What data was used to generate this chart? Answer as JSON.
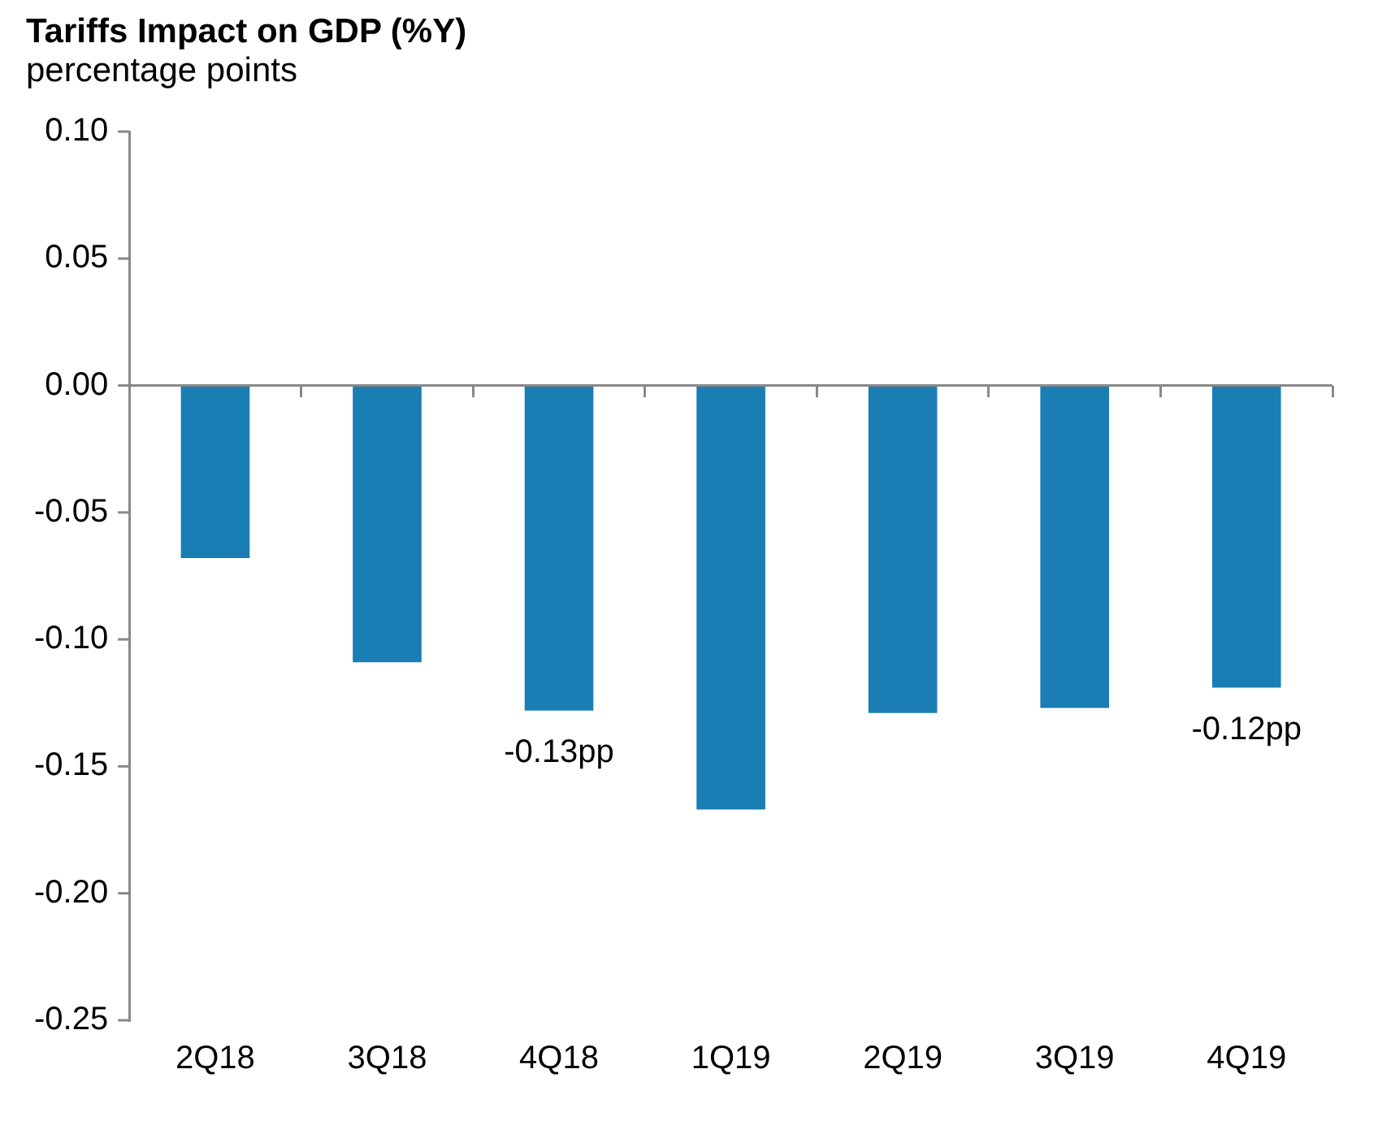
{
  "chart_data": {
    "type": "bar",
    "title": "Tariffs Impact on GDP (%Y)",
    "subtitle": "percentage points",
    "categories": [
      "2Q18",
      "3Q18",
      "4Q18",
      "1Q19",
      "2Q19",
      "3Q19",
      "4Q19"
    ],
    "values": [
      -0.068,
      -0.109,
      -0.128,
      -0.167,
      -0.129,
      -0.127,
      -0.119
    ],
    "value_labels": [
      null,
      null,
      "-0.13pp",
      null,
      null,
      null,
      "-0.12pp"
    ],
    "color": "#1a7db4",
    "ylim": [
      -0.25,
      0.1
    ],
    "yticks": [
      {
        "value": -0.25,
        "label": "-0.25"
      },
      {
        "value": -0.2,
        "label": "-0.20"
      },
      {
        "value": -0.15,
        "label": "-0.15"
      },
      {
        "value": -0.1,
        "label": "-0.10"
      },
      {
        "value": -0.05,
        "label": "-0.05"
      },
      {
        "value": 0,
        "label": "0.00"
      },
      {
        "value": 0.05,
        "label": "0.05"
      },
      {
        "value": 0.1,
        "label": "0.10"
      }
    ],
    "ref_lines": [
      {
        "axis": "y",
        "value": 0,
        "color": "#888888"
      }
    ],
    "grid": false,
    "legend": false
  }
}
